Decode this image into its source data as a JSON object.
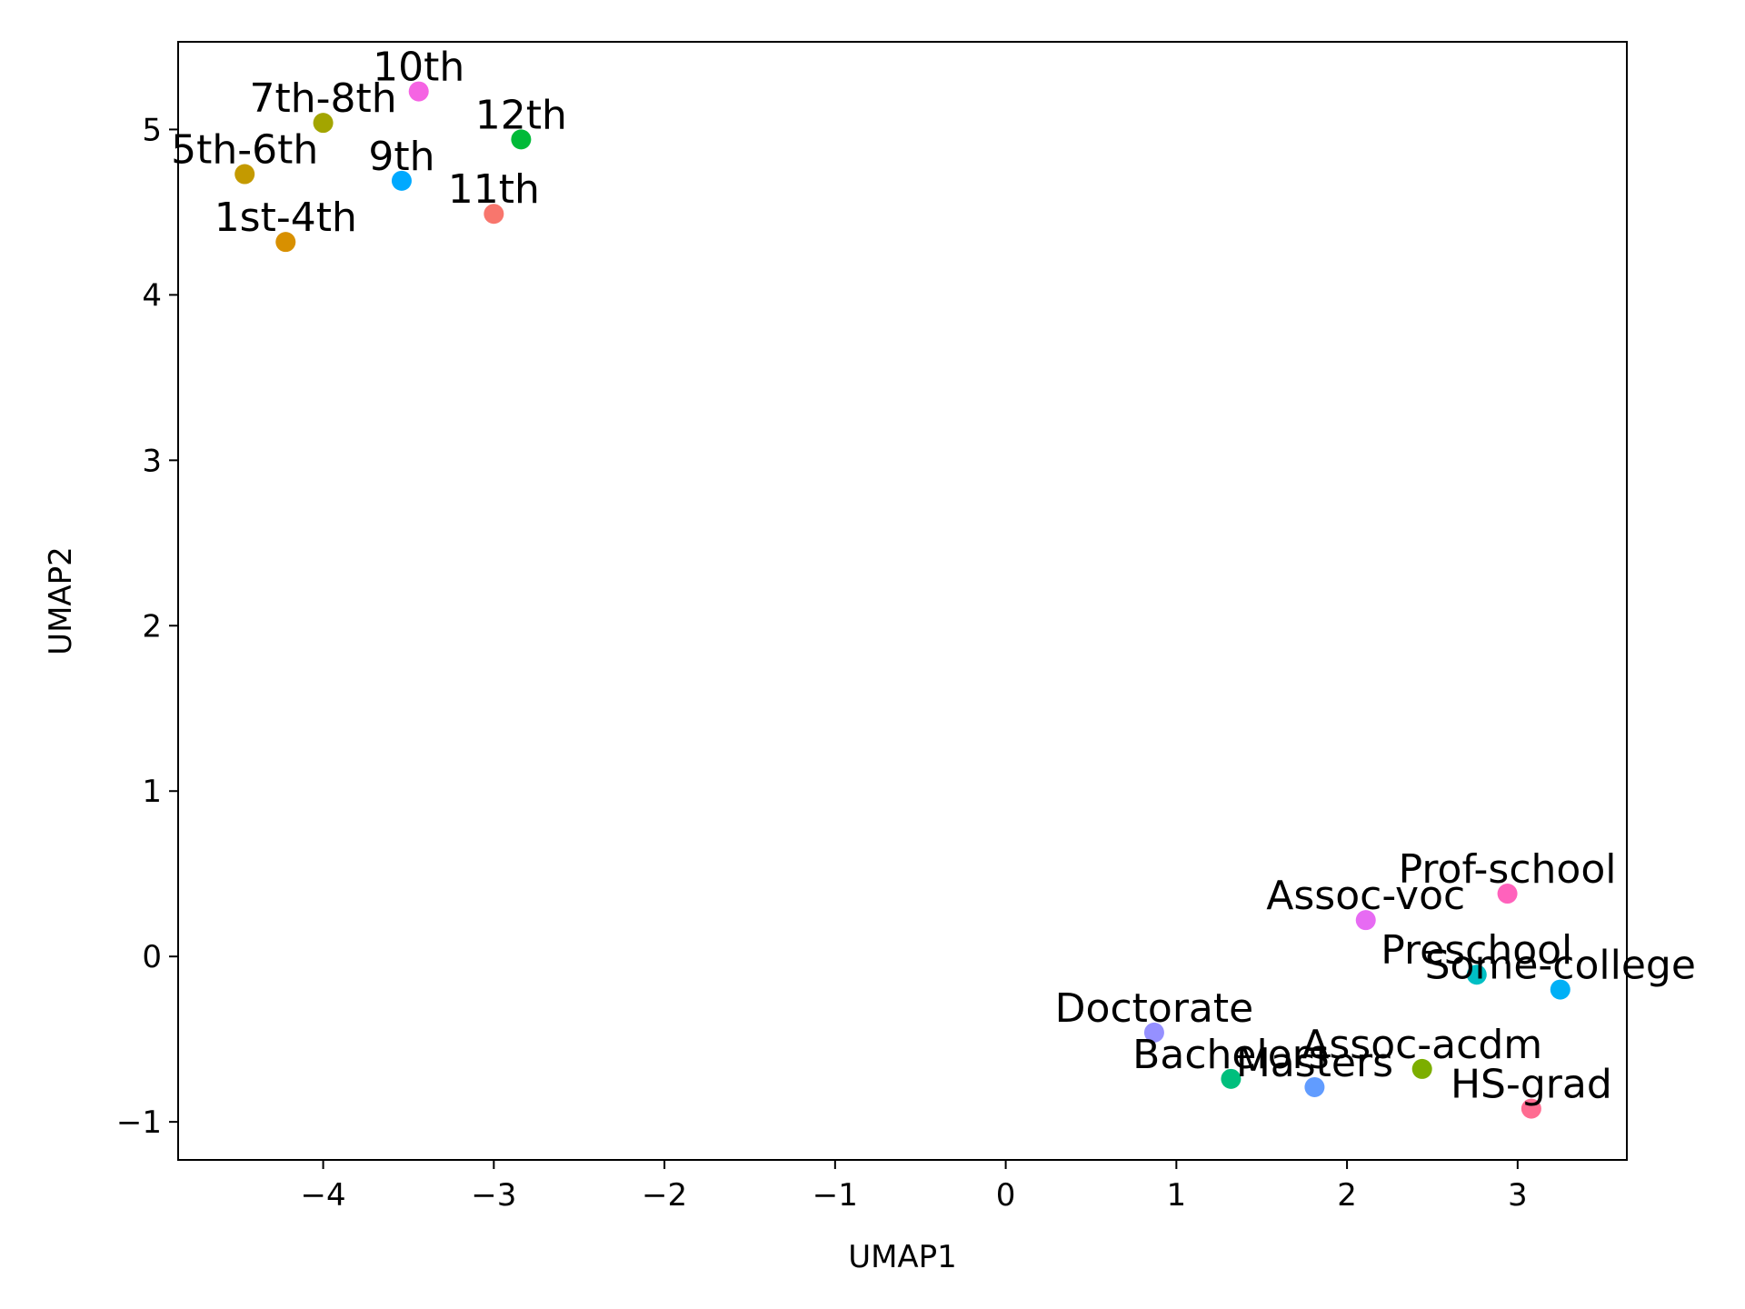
{
  "chart_data": {
    "type": "scatter",
    "title": "",
    "xlabel": "UMAP1",
    "ylabel": "UMAP2",
    "xlim": [
      -4.85,
      3.64
    ],
    "ylim": [
      -1.23,
      5.53
    ],
    "xticks": [
      -4,
      -3,
      -2,
      -1,
      0,
      1,
      2,
      3
    ],
    "yticks": [
      -1,
      0,
      1,
      2,
      3,
      4,
      5
    ],
    "xtick_labels": [
      "−4",
      "−3",
      "−2",
      "−1",
      "0",
      "1",
      "2",
      "3"
    ],
    "ytick_labels": [
      "−1",
      "0",
      "1",
      "2",
      "3",
      "4",
      "5"
    ],
    "grid": false,
    "legend": "none",
    "points": [
      {
        "label": "10th",
        "x": -3.44,
        "y": 5.23,
        "color": "#f564e3"
      },
      {
        "label": "7th-8th",
        "x": -4.0,
        "y": 5.04,
        "color": "#a3a500"
      },
      {
        "label": "12th",
        "x": -2.84,
        "y": 4.94,
        "color": "#00ba38"
      },
      {
        "label": "5th-6th",
        "x": -4.46,
        "y": 4.73,
        "color": "#c49a00"
      },
      {
        "label": "9th",
        "x": -3.54,
        "y": 4.69,
        "color": "#00a9ff"
      },
      {
        "label": "11th",
        "x": -3.0,
        "y": 4.49,
        "color": "#f8766d"
      },
      {
        "label": "1st-4th",
        "x": -4.22,
        "y": 4.32,
        "color": "#d89000"
      },
      {
        "label": "Prof-school",
        "x": 2.94,
        "y": 0.38,
        "color": "#ff62bc"
      },
      {
        "label": "Assoc-voc",
        "x": 2.11,
        "y": 0.22,
        "color": "#e76bf3"
      },
      {
        "label": "Preschool",
        "x": 2.76,
        "y": -0.11,
        "color": "#00bfc4"
      },
      {
        "label": "Some-college",
        "x": 3.25,
        "y": -0.2,
        "color": "#00b0f6"
      },
      {
        "label": "Doctorate",
        "x": 0.87,
        "y": -0.46,
        "color": "#9590ff"
      },
      {
        "label": "Assoc-acdm",
        "x": 2.44,
        "y": -0.68,
        "color": "#7cae00"
      },
      {
        "label": "Bachelors",
        "x": 1.32,
        "y": -0.74,
        "color": "#00bf7d"
      },
      {
        "label": "Masters",
        "x": 1.81,
        "y": -0.79,
        "color": "#619cff"
      },
      {
        "label": "HS-grad",
        "x": 3.08,
        "y": -0.92,
        "color": "#ff6c91"
      }
    ]
  }
}
